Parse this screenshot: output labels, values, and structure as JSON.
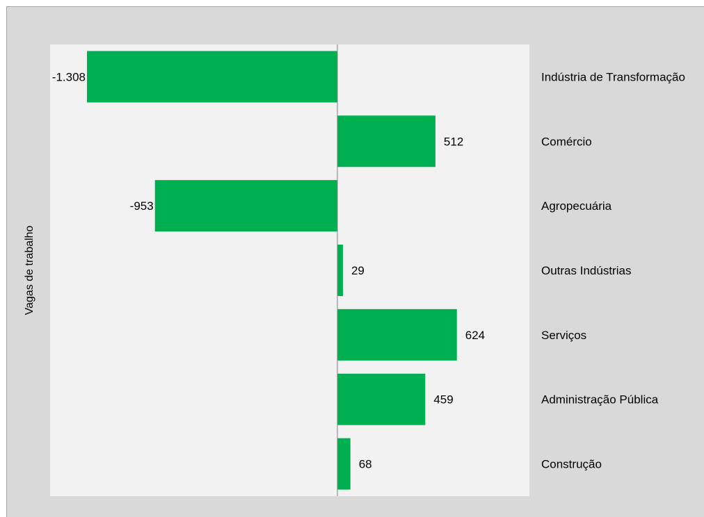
{
  "chart_data": {
    "type": "bar",
    "orientation": "horizontal",
    "ylabel": "Vagas de trabalho",
    "categories": [
      "Indústria de Transformação",
      "Comércio",
      "Agropecuária",
      "Outras Indústrias",
      "Serviços",
      "Administração Pública",
      "Construção"
    ],
    "values": [
      -1308,
      512,
      -953,
      29,
      624,
      459,
      68
    ],
    "data_labels": [
      "-1.308",
      "512",
      "-953",
      "29",
      "624",
      "459",
      "68"
    ],
    "xlim": [
      -1500,
      1000
    ],
    "grid": false,
    "legend": "none",
    "colors": {
      "bar": "#00b050",
      "plot_background": "#f2f2f2",
      "chart_background": "#d9d9d9",
      "axis": "#808080"
    }
  }
}
